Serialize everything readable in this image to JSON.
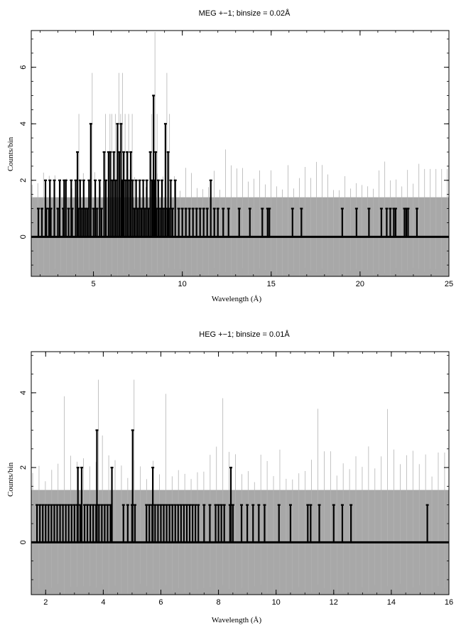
{
  "chart_data": [
    {
      "type": "line",
      "title": "MEG +−1; binsize = 0.02Å",
      "xlabel": "Wavelength (Å)",
      "ylabel": "Counts/bin",
      "xlim": [
        1.5,
        25
      ],
      "ylim": [
        -1.4,
        7.3
      ],
      "xticks": [
        5,
        10,
        15,
        20,
        25
      ],
      "xtick_labels": [
        "5",
        "10",
        "15",
        "20",
        "25"
      ],
      "yticks": [
        0,
        2,
        4,
        6
      ],
      "ytick_labels": [
        "0",
        "2",
        "4",
        "6"
      ],
      "grid": false,
      "legend": "none",
      "error_band": {
        "lower": -1.4,
        "upper": 1.4,
        "color": "#a8a8a8",
        "extent": [
          1.5,
          25
        ]
      },
      "colors": {
        "spectrum": "#000000",
        "uncertainty": "#b3b3b3",
        "zero_line": "#000000"
      },
      "series": [
        {
          "x": [
            1.9,
            2.1,
            2.3,
            2.35,
            2.5,
            2.55,
            2.6,
            2.8,
            3.0,
            3.1,
            3.3,
            3.35,
            3.45,
            3.6,
            3.75,
            3.8,
            4.0,
            4.1,
            4.15,
            4.25,
            4.35,
            4.45,
            4.55,
            4.65,
            4.75,
            4.85,
            5.0,
            5.1,
            5.2,
            5.35,
            5.45,
            5.6,
            5.7,
            5.85,
            5.95,
            6.05,
            6.15,
            6.25,
            6.35,
            6.45,
            6.55,
            6.62,
            6.7,
            6.8,
            6.9,
            7.0,
            7.1,
            7.2,
            7.3,
            7.4,
            7.5,
            7.6,
            7.7,
            7.8,
            7.9,
            8.0,
            8.1,
            8.2,
            8.3,
            8.38,
            8.45,
            8.5,
            8.55,
            8.65,
            8.75,
            8.85,
            8.95,
            9.05,
            9.15,
            9.2,
            9.25,
            9.35,
            9.45,
            9.6,
            9.8,
            10.0,
            10.2,
            10.4,
            10.6,
            10.8,
            11.0,
            11.2,
            11.4,
            11.6,
            11.8,
            12.0,
            12.3,
            12.6,
            13.2,
            13.8,
            14.5,
            14.8,
            14.9,
            16.2,
            16.7,
            19.0,
            19.8,
            20.5,
            21.2,
            21.5,
            21.7,
            21.9,
            22.0,
            22.5,
            22.6,
            22.7,
            23.2
          ],
          "values": [
            1,
            1,
            2,
            1,
            1,
            2,
            1,
            2,
            1,
            2,
            1,
            2,
            2,
            1,
            2,
            1,
            2,
            3,
            1,
            2,
            1,
            2,
            1,
            1,
            2,
            4,
            1,
            2,
            1,
            2,
            1,
            3,
            2,
            3,
            3,
            2,
            3,
            2,
            4,
            3,
            4,
            2,
            3,
            2,
            3,
            2,
            3,
            2,
            1,
            2,
            1,
            2,
            1,
            2,
            1,
            2,
            1,
            3,
            2,
            5,
            2,
            3,
            1,
            2,
            1,
            2,
            1,
            4,
            1,
            3,
            1,
            2,
            1,
            2,
            1,
            1,
            1,
            1,
            1,
            1,
            1,
            1,
            1,
            2,
            1,
            1,
            1,
            1,
            1,
            1,
            1,
            1,
            1,
            1,
            1,
            1,
            1,
            1,
            1,
            1,
            1,
            1,
            1,
            1,
            1,
            1,
            1
          ]
        }
      ]
    },
    {
      "type": "line",
      "title": "HEG +−1; binsize = 0.01Å",
      "xlabel": "Wavelength (Å)",
      "ylabel": "Counts/bin",
      "xlim": [
        1.5,
        16
      ],
      "ylim": [
        -1.4,
        5.1
      ],
      "xticks": [
        2,
        4,
        6,
        8,
        10,
        12,
        14,
        16
      ],
      "xtick_labels": [
        "2",
        "4",
        "6",
        "8",
        "10",
        "12",
        "14",
        "16"
      ],
      "yticks": [
        0,
        2,
        4
      ],
      "ytick_labels": [
        "0",
        "2",
        "4"
      ],
      "grid": false,
      "legend": "none",
      "error_band": {
        "lower": -1.4,
        "upper": 1.4,
        "color": "#a8a8a8",
        "extent": [
          1.5,
          16
        ]
      },
      "colors": {
        "spectrum": "#000000",
        "uncertainty": "#b3b3b3",
        "zero_line": "#000000"
      },
      "series": [
        {
          "x": [
            1.7,
            1.8,
            1.9,
            2.0,
            2.1,
            2.2,
            2.3,
            2.4,
            2.5,
            2.6,
            2.7,
            2.8,
            2.9,
            3.0,
            3.1,
            3.12,
            3.2,
            3.25,
            3.35,
            3.45,
            3.55,
            3.65,
            3.75,
            3.78,
            3.85,
            3.95,
            4.05,
            4.15,
            4.25,
            4.3,
            4.7,
            4.85,
            5.0,
            5.02,
            5.1,
            5.5,
            5.6,
            5.7,
            5.72,
            5.8,
            5.9,
            6.0,
            6.1,
            6.2,
            6.3,
            6.4,
            6.5,
            6.6,
            6.7,
            6.8,
            6.9,
            7.0,
            7.1,
            7.2,
            7.3,
            7.5,
            7.7,
            7.9,
            8.0,
            8.1,
            8.2,
            8.4,
            8.43,
            8.5,
            8.8,
            9.0,
            9.2,
            9.4,
            9.6,
            10.1,
            10.5,
            11.1,
            11.2,
            11.5,
            12.0,
            12.3,
            12.6,
            15.25
          ],
          "values": [
            1,
            1,
            1,
            1,
            1,
            1,
            1,
            1,
            1,
            1,
            1,
            1,
            1,
            1,
            1,
            2,
            1,
            2,
            1,
            1,
            1,
            1,
            1,
            3,
            1,
            1,
            1,
            1,
            1,
            2,
            1,
            1,
            1,
            3,
            1,
            1,
            1,
            1,
            2,
            1,
            1,
            1,
            1,
            1,
            1,
            1,
            1,
            1,
            1,
            1,
            1,
            1,
            1,
            1,
            1,
            1,
            1,
            1,
            1,
            1,
            1,
            1,
            2,
            1,
            1,
            1,
            1,
            1,
            1,
            1,
            1,
            1,
            1,
            1,
            1,
            1,
            1,
            1
          ]
        }
      ]
    }
  ]
}
